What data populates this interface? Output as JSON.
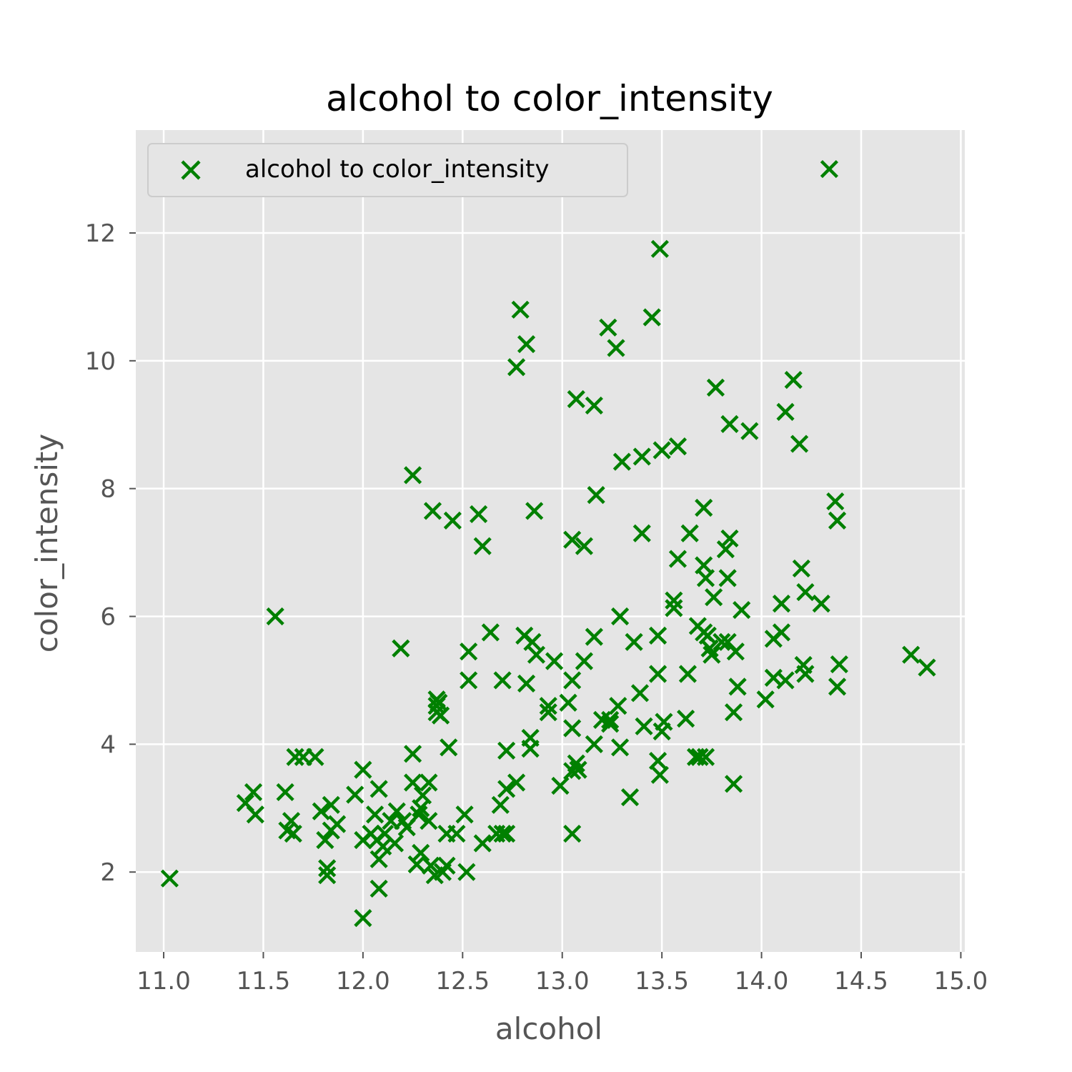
{
  "chart_data": {
    "type": "scatter",
    "title": "alcohol to color_intensity",
    "xlabel": "alcohol",
    "ylabel": "color_intensity",
    "xlim": [
      10.86,
      15.02
    ],
    "ylim": [
      0.75,
      13.61
    ],
    "xticks": [
      "11.0",
      "11.5",
      "12.0",
      "12.5",
      "13.0",
      "13.5",
      "14.0",
      "14.5",
      "15.0"
    ],
    "yticks": [
      "2",
      "4",
      "6",
      "8",
      "10",
      "12"
    ],
    "grid": true,
    "legend_position": "top-left",
    "marker": "x",
    "colors": {
      "marker": "#008000",
      "plot_bg": "#e5e5e5",
      "grid": "#ffffff",
      "text": "#555555"
    },
    "series": [
      {
        "name": "alcohol to color_intensity",
        "points": [
          [
            11.03,
            1.9
          ],
          [
            11.41,
            3.08
          ],
          [
            11.45,
            3.25
          ],
          [
            11.46,
            2.9
          ],
          [
            11.56,
            6.0
          ],
          [
            11.61,
            3.25
          ],
          [
            11.62,
            2.65
          ],
          [
            11.64,
            2.8
          ],
          [
            11.65,
            2.6
          ],
          [
            11.66,
            3.8
          ],
          [
            11.7,
            3.8
          ],
          [
            11.76,
            3.8
          ],
          [
            11.79,
            2.95
          ],
          [
            11.81,
            2.5
          ],
          [
            11.82,
            2.06
          ],
          [
            11.82,
            1.95
          ],
          [
            11.84,
            3.05
          ],
          [
            11.84,
            2.65
          ],
          [
            11.87,
            2.75
          ],
          [
            11.96,
            3.21
          ],
          [
            12.0,
            1.28
          ],
          [
            12.0,
            3.6
          ],
          [
            12.0,
            2.5
          ],
          [
            12.04,
            2.6
          ],
          [
            12.06,
            2.9
          ],
          [
            12.07,
            2.5
          ],
          [
            12.08,
            3.3
          ],
          [
            12.08,
            2.2
          ],
          [
            12.08,
            1.74
          ],
          [
            12.1,
            2.4
          ],
          [
            12.11,
            2.6
          ],
          [
            12.14,
            2.8
          ],
          [
            12.16,
            2.45
          ],
          [
            12.17,
            2.95
          ],
          [
            12.19,
            5.5
          ],
          [
            12.2,
            2.8
          ],
          [
            12.22,
            2.7
          ],
          [
            12.25,
            8.21
          ],
          [
            12.25,
            3.85
          ],
          [
            12.25,
            3.4
          ],
          [
            12.27,
            2.12
          ],
          [
            12.28,
            2.9
          ],
          [
            12.29,
            2.3
          ],
          [
            12.29,
            3.0
          ],
          [
            12.3,
            3.2
          ],
          [
            12.33,
            3.4
          ],
          [
            12.33,
            2.8
          ],
          [
            12.34,
            2.1
          ],
          [
            12.35,
            7.65
          ],
          [
            12.36,
            1.95
          ],
          [
            12.37,
            4.6
          ],
          [
            12.37,
            4.7
          ],
          [
            12.37,
            4.5
          ],
          [
            12.38,
            4.65
          ],
          [
            12.39,
            4.45
          ],
          [
            12.4,
            2.0
          ],
          [
            12.42,
            2.6
          ],
          [
            12.42,
            2.1
          ],
          [
            12.43,
            3.95
          ],
          [
            12.45,
            7.5
          ],
          [
            12.47,
            2.6
          ],
          [
            12.51,
            2.9
          ],
          [
            12.52,
            2.0
          ],
          [
            12.53,
            5.45
          ],
          [
            12.53,
            5.0
          ],
          [
            12.58,
            7.6
          ],
          [
            12.6,
            7.1
          ],
          [
            12.6,
            2.45
          ],
          [
            12.64,
            5.75
          ],
          [
            12.67,
            2.6
          ],
          [
            12.69,
            3.05
          ],
          [
            12.7,
            2.6
          ],
          [
            12.7,
            5.0
          ],
          [
            12.72,
            2.6
          ],
          [
            12.72,
            3.9
          ],
          [
            12.72,
            3.3
          ],
          [
            12.77,
            9.9
          ],
          [
            12.77,
            3.4
          ],
          [
            12.79,
            10.8
          ],
          [
            12.81,
            5.7
          ],
          [
            12.82,
            10.26
          ],
          [
            12.82,
            4.95
          ],
          [
            12.84,
            4.1
          ],
          [
            12.84,
            3.93
          ],
          [
            12.85,
            5.6
          ],
          [
            12.86,
            7.65
          ],
          [
            12.87,
            5.4
          ],
          [
            12.93,
            4.6
          ],
          [
            12.93,
            4.5
          ],
          [
            12.96,
            5.3
          ],
          [
            12.99,
            3.35
          ],
          [
            13.03,
            4.65
          ],
          [
            13.05,
            2.6
          ],
          [
            13.05,
            4.25
          ],
          [
            13.05,
            5.0
          ],
          [
            13.05,
            7.2
          ],
          [
            13.05,
            3.58
          ],
          [
            13.07,
            9.4
          ],
          [
            13.07,
            3.7
          ],
          [
            13.08,
            3.6
          ],
          [
            13.11,
            7.1
          ],
          [
            13.11,
            5.3
          ],
          [
            13.16,
            9.3
          ],
          [
            13.16,
            5.68
          ],
          [
            13.16,
            4.0
          ],
          [
            13.17,
            7.9
          ],
          [
            13.2,
            4.38
          ],
          [
            13.23,
            10.52
          ],
          [
            13.24,
            4.38
          ],
          [
            13.24,
            4.32
          ],
          [
            13.27,
            10.2
          ],
          [
            13.28,
            4.6
          ],
          [
            13.29,
            6.0
          ],
          [
            13.29,
            3.95
          ],
          [
            13.3,
            8.42
          ],
          [
            13.34,
            3.17
          ],
          [
            13.36,
            5.6
          ],
          [
            13.39,
            4.8
          ],
          [
            13.4,
            8.5
          ],
          [
            13.4,
            7.3
          ],
          [
            13.41,
            4.28
          ],
          [
            13.45,
            10.68
          ],
          [
            13.48,
            5.7
          ],
          [
            13.48,
            5.1
          ],
          [
            13.48,
            3.74
          ],
          [
            13.49,
            11.75
          ],
          [
            13.49,
            3.52
          ],
          [
            13.5,
            8.6
          ],
          [
            13.5,
            4.2
          ],
          [
            13.51,
            4.35
          ],
          [
            13.56,
            6.25
          ],
          [
            13.56,
            6.13
          ],
          [
            13.58,
            6.9
          ],
          [
            13.58,
            8.66
          ],
          [
            13.62,
            4.4
          ],
          [
            13.63,
            5.1
          ],
          [
            13.64,
            7.3
          ],
          [
            13.67,
            3.8
          ],
          [
            13.68,
            5.85
          ],
          [
            13.69,
            3.8
          ],
          [
            13.71,
            7.7
          ],
          [
            13.71,
            5.75
          ],
          [
            13.71,
            6.8
          ],
          [
            13.72,
            6.6
          ],
          [
            13.72,
            3.8
          ],
          [
            13.73,
            5.7
          ],
          [
            13.74,
            5.5
          ],
          [
            13.75,
            5.4
          ],
          [
            13.76,
            6.3
          ],
          [
            13.77,
            9.58
          ],
          [
            13.8,
            5.6
          ],
          [
            13.82,
            7.05
          ],
          [
            13.83,
            6.6
          ],
          [
            13.83,
            5.6
          ],
          [
            13.84,
            9.01
          ],
          [
            13.84,
            7.22
          ],
          [
            13.86,
            3.38
          ],
          [
            13.86,
            4.5
          ],
          [
            13.87,
            5.45
          ],
          [
            13.88,
            4.9
          ],
          [
            13.9,
            6.1
          ],
          [
            13.94,
            8.9
          ],
          [
            14.02,
            4.7
          ],
          [
            14.06,
            5.65
          ],
          [
            14.06,
            5.04
          ],
          [
            14.1,
            5.75
          ],
          [
            14.1,
            6.2
          ],
          [
            14.12,
            5.0
          ],
          [
            14.12,
            9.2
          ],
          [
            14.16,
            9.7
          ],
          [
            14.19,
            8.7
          ],
          [
            14.2,
            6.75
          ],
          [
            14.21,
            5.24
          ],
          [
            14.22,
            6.38
          ],
          [
            14.22,
            5.1
          ],
          [
            14.3,
            6.2
          ],
          [
            14.34,
            13.0
          ],
          [
            14.37,
            7.8
          ],
          [
            14.38,
            4.9
          ],
          [
            14.38,
            7.5
          ],
          [
            14.39,
            5.25
          ],
          [
            14.75,
            5.4
          ],
          [
            14.83,
            5.2
          ]
        ]
      }
    ]
  }
}
